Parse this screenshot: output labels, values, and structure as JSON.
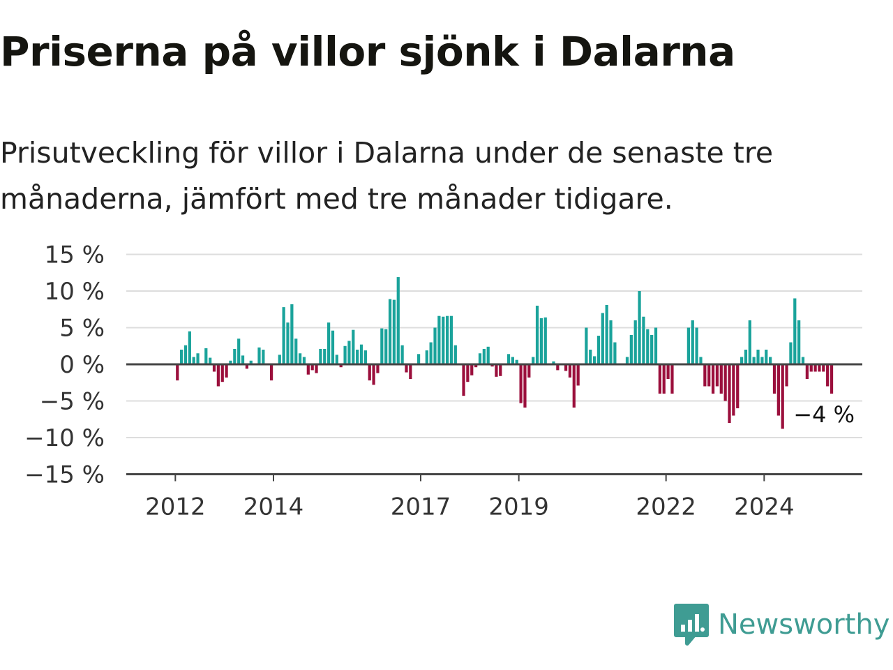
{
  "header": {
    "title": "Priserna på villor sjönk i Dalarna",
    "subtitle": "Prisutveckling för villor i Dalarna under de senaste tre månaderna, jämfört med tre månader tidigare."
  },
  "brand": {
    "name": "Newsworthy",
    "icon": "newsworthy-logo-icon",
    "color": "#3f9c93"
  },
  "chart_data": {
    "type": "bar",
    "x_start": "2011-01",
    "x_end": "2025-12",
    "bar_interval": "month",
    "first_bar": "2012-01",
    "y_ticks": [
      "15 %",
      "10 %",
      "5 %",
      "0 %",
      "−5 %",
      "−10 %",
      "−15 %"
    ],
    "ylim": [
      -15,
      15
    ],
    "x_ticks": [
      {
        "label": "2012",
        "at": "2012-01"
      },
      {
        "label": "2014",
        "at": "2014-01"
      },
      {
        "label": "2017",
        "at": "2017-01"
      },
      {
        "label": "2019",
        "at": "2019-01"
      },
      {
        "label": "2022",
        "at": "2022-01"
      },
      {
        "label": "2024",
        "at": "2024-01"
      }
    ],
    "grid": true,
    "colors": {
      "positive": "#1aa39b",
      "negative": "#9b0f3c",
      "axis": "#444444",
      "grid": "#dddddd"
    },
    "values": [
      -2.2,
      2.0,
      2.6,
      4.5,
      1.0,
      1.5,
      0,
      2.2,
      0.9,
      -1.0,
      -3.0,
      -2.4,
      -1.8,
      0.5,
      2.1,
      3.5,
      1.2,
      -0.6,
      0.5,
      0,
      2.3,
      2.0,
      0,
      -2.2,
      0,
      1.3,
      7.8,
      5.7,
      8.2,
      3.5,
      1.5,
      1.0,
      -1.4,
      -0.8,
      -1.2,
      2.1,
      2.1,
      5.7,
      4.6,
      1.3,
      -0.4,
      2.5,
      3.2,
      4.7,
      2.0,
      2.7,
      1.9,
      -2.2,
      -2.8,
      -1.2,
      4.9,
      4.8,
      8.9,
      8.8,
      11.9,
      2.6,
      -1.1,
      -2.0,
      0,
      1.4,
      0,
      1.9,
      3.0,
      5.0,
      6.6,
      6.5,
      6.6,
      6.6,
      2.6,
      0,
      -4.3,
      -2.4,
      -1.5,
      -0.4,
      1.5,
      2.1,
      2.4,
      -0.3,
      -1.7,
      -1.6,
      0,
      1.4,
      1.0,
      0.6,
      -5.3,
      -5.9,
      -1.8,
      1.0,
      8.0,
      6.3,
      6.4,
      0,
      0.4,
      -0.8,
      0,
      -0.9,
      -1.8,
      -5.9,
      -2.9,
      0,
      5.0,
      2.0,
      1.1,
      3.9,
      7.0,
      8.1,
      6.0,
      3.0,
      0,
      0,
      1.0,
      4.0,
      6.0,
      10.0,
      6.5,
      4.8,
      4.0,
      5.0,
      -4.0,
      -4.0,
      -2.0,
      -4.0,
      0,
      0,
      0,
      5.0,
      6.0,
      5.0,
      1.0,
      -3.0,
      -3.0,
      -4.0,
      -3.0,
      -4.0,
      -5.0,
      -8.0,
      -7.0,
      -6.0,
      1.0,
      2.0,
      6.0,
      1.0,
      2.0,
      1.0,
      2.0,
      1.0,
      -4.0,
      -7.0,
      -8.8,
      -3.0,
      3.0,
      9.0,
      6.0,
      1.0,
      -2.0,
      -1.0,
      -1.0,
      -1.0,
      -1.0,
      -3.0,
      -4.0
    ],
    "last_value_label": "−4 %"
  }
}
